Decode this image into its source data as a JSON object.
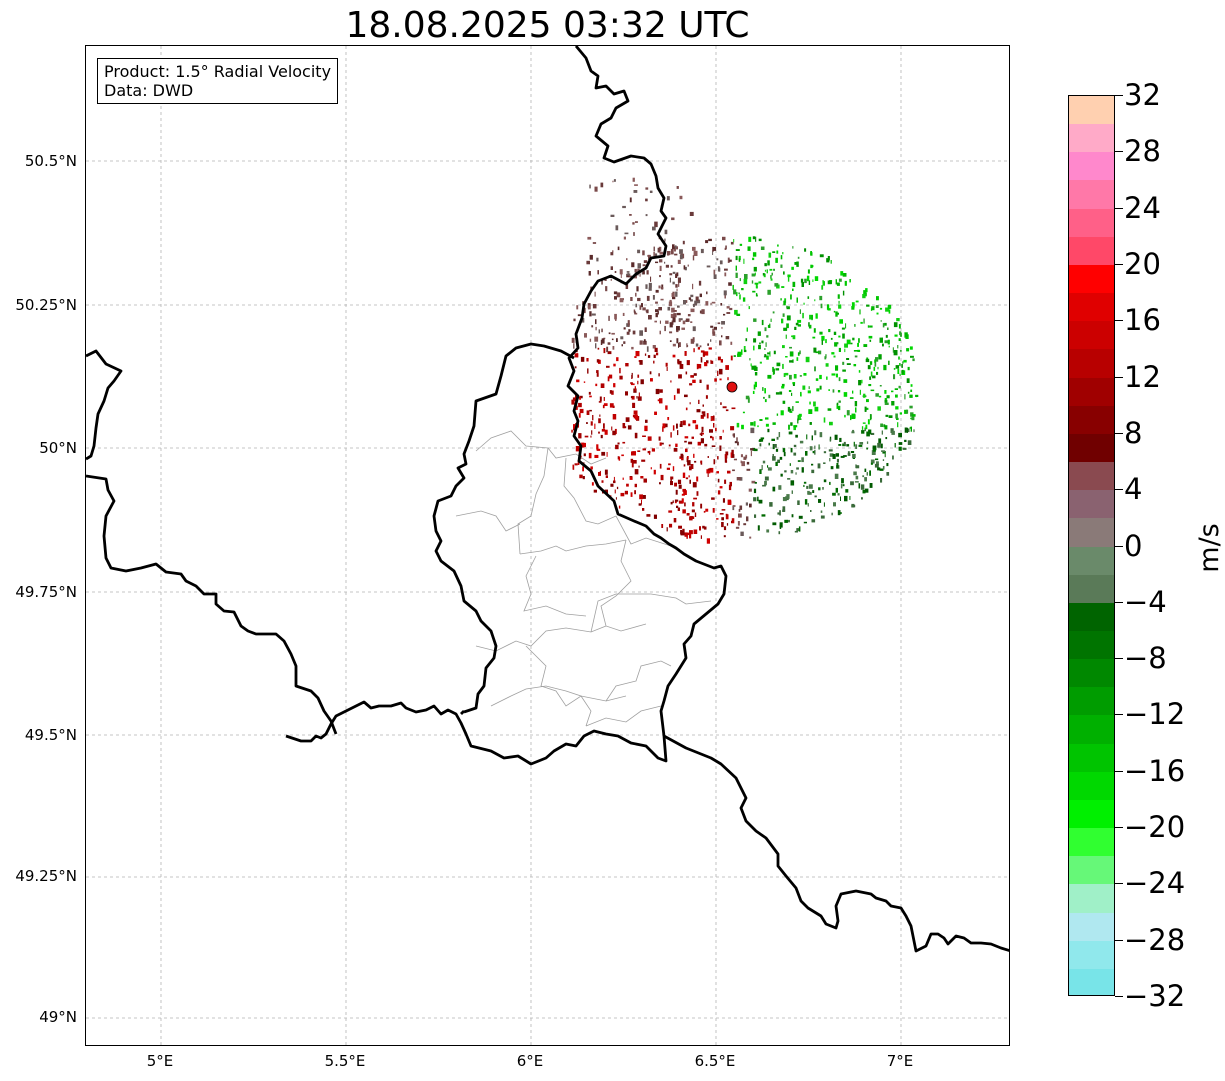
{
  "title": "18.08.2025 03:32 UTC",
  "info": {
    "product_line": "Product: 1.5° Radial Velocity",
    "data_line": "Data: DWD"
  },
  "map": {
    "lat_ticks": [
      "50.5°N",
      "50.25°N",
      "50°N",
      "49.75°N",
      "49.5°N",
      "49.25°N",
      "49°N"
    ],
    "lon_ticks": [
      "5°E",
      "5.5°E",
      "6°E",
      "6.5°E",
      "7°E"
    ],
    "radar_site_color": "#e01010",
    "border_color": "#000000",
    "district_color": "#a0a0a0"
  },
  "colorbar": {
    "unit": "m/s",
    "tick_labels": [
      "32",
      "28",
      "24",
      "20",
      "16",
      "12",
      "8",
      "4",
      "0",
      "−4",
      "−8",
      "−12",
      "−16",
      "−20",
      "−24",
      "−28",
      "−32"
    ],
    "colors_top_to_bottom": [
      "#ffd0b0",
      "#ffaac8",
      "#ff88cc",
      "#ff78a8",
      "#ff6088",
      "#ff4868",
      "#ff0000",
      "#e00000",
      "#cc0000",
      "#b80000",
      "#a00000",
      "#880000",
      "#700000",
      "#8a4a50",
      "#8a6270",
      "#8a7a78",
      "#6a8a6a",
      "#5a7a58",
      "#006400",
      "#007400",
      "#008800",
      "#009c00",
      "#00b000",
      "#00c400",
      "#00d800",
      "#00f000",
      "#30ff30",
      "#66f878",
      "#a0f0c8",
      "#b0e8f0",
      "#90e8ec",
      "#78e4e8"
    ]
  }
}
